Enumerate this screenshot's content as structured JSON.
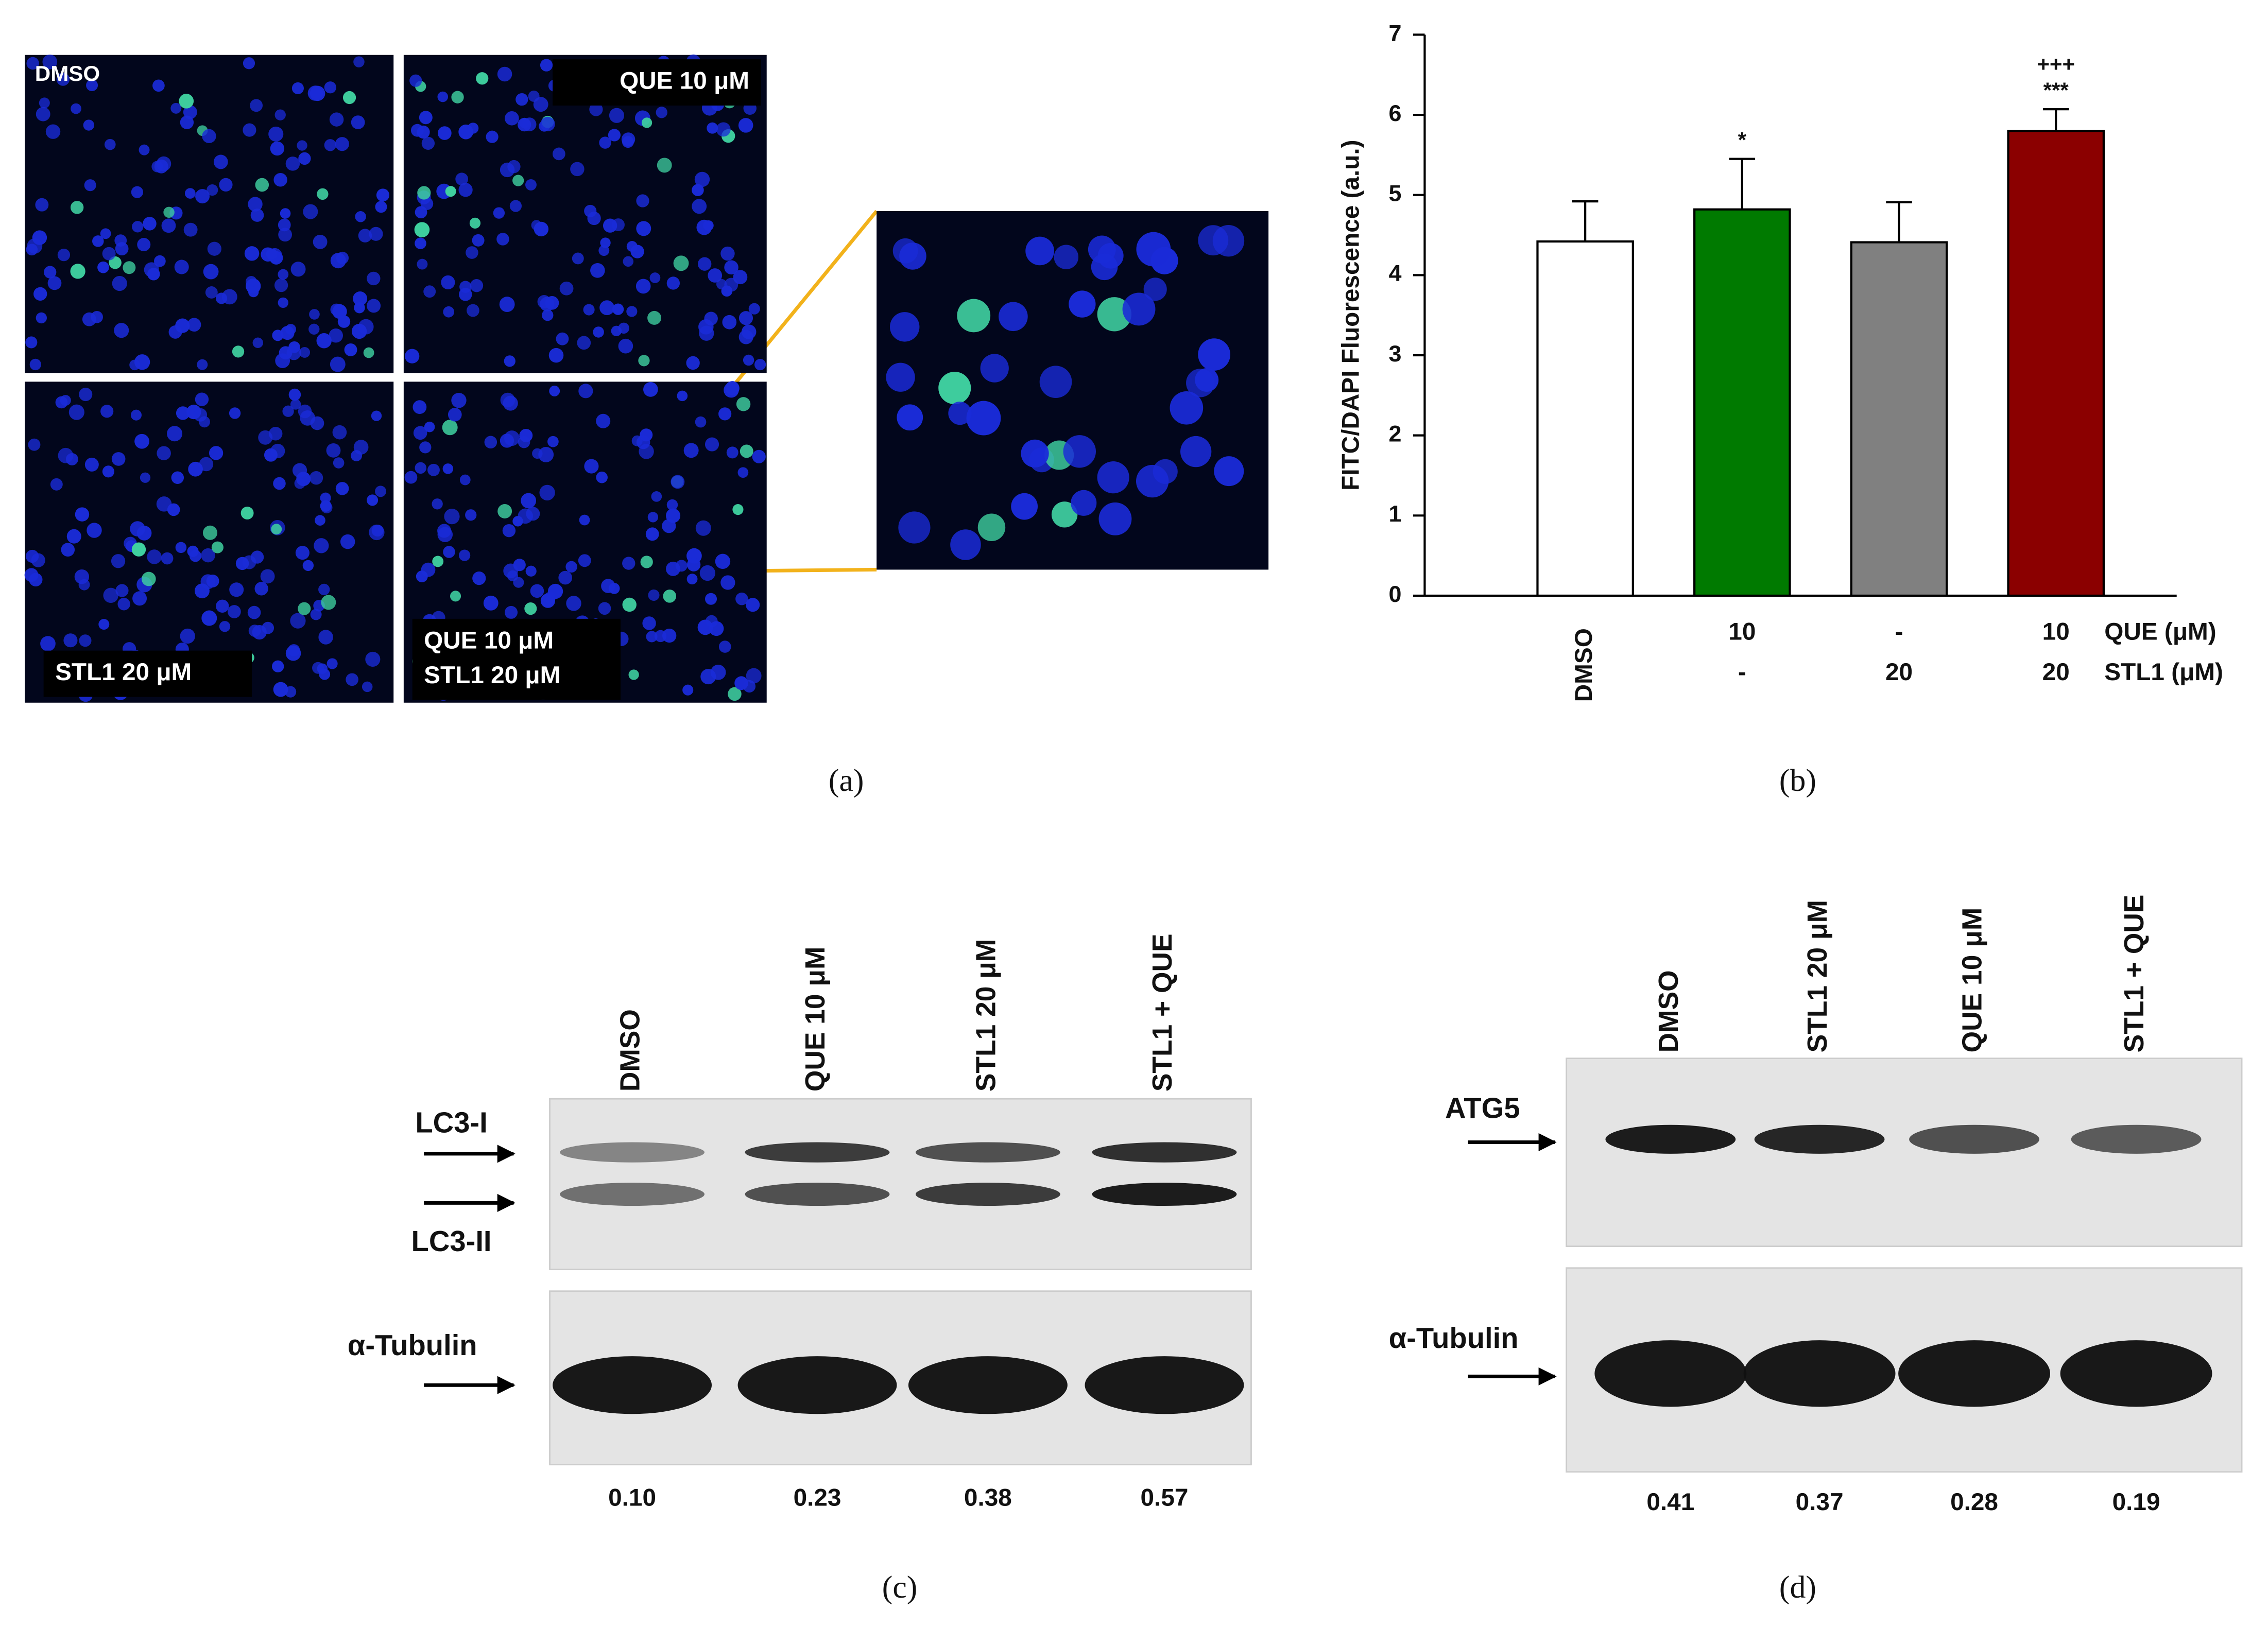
{
  "panel_a": {
    "images": [
      {
        "label": [
          "DMSO"
        ]
      },
      {
        "label": [
          "QUE 10 μM"
        ]
      },
      {
        "label": [
          "STL1 20 μM"
        ]
      },
      {
        "label": [
          "QUE 10 μM",
          "STL1 20 μM"
        ]
      }
    ],
    "caption": "(a)"
  },
  "chart_data": {
    "type": "bar",
    "y_label": "FITC/DAPI Fluorescence (a.u.)",
    "categories": [
      "DMSO",
      null,
      null,
      null
    ],
    "x_rows": [
      {
        "label": "QUE (μM)",
        "values": [
          null,
          "10",
          "-",
          "10"
        ]
      },
      {
        "label": "STL1 (μM)",
        "values": [
          null,
          "-",
          "20",
          "20"
        ]
      }
    ],
    "values": [
      4.42,
      4.82,
      4.41,
      5.8
    ],
    "errors": [
      0.5,
      0.63,
      0.5,
      0.27
    ],
    "colors": [
      "#ffffff",
      "#007a00",
      "#808080",
      "#8b0000"
    ],
    "annotations": [
      null,
      [
        "*"
      ],
      null,
      [
        "+++",
        "***"
      ]
    ],
    "ylim": [
      0,
      7
    ],
    "yticks": [
      0,
      1,
      2,
      3,
      4,
      5,
      6,
      7
    ],
    "caption": "(b)"
  },
  "panel_c": {
    "lanes": [
      "DMSO",
      "QUE 10 μM",
      "STL1 20 μM",
      "STL1 + QUE"
    ],
    "bands": [
      "LC3-I",
      "LC3-II"
    ],
    "loading": "α-Tubulin",
    "ratios": [
      "0.10",
      "0.23",
      "0.38",
      "0.57"
    ],
    "caption": "(c)"
  },
  "panel_d": {
    "lanes": [
      "DMSO",
      "STL1 20 μM",
      "QUE 10 μM",
      "STL1 + QUE"
    ],
    "bands": [
      "ATG5"
    ],
    "loading": "α-Tubulin",
    "ratios": [
      "0.41",
      "0.37",
      "0.28",
      "0.19"
    ],
    "caption": "(d)"
  }
}
